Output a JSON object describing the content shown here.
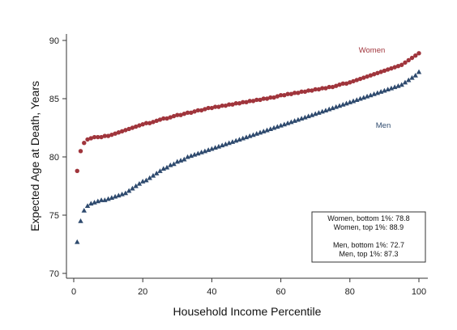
{
  "chart_data": {
    "type": "scatter",
    "xlabel": "Household Income Percentile",
    "ylabel": "Expected Age at Death, Years",
    "xlim": [
      0,
      100
    ],
    "ylim": [
      70,
      90
    ],
    "xticks": [
      0,
      20,
      40,
      60,
      80,
      100
    ],
    "yticks": [
      70,
      75,
      80,
      85,
      90
    ],
    "grid": false,
    "series": [
      {
        "name": "Women",
        "color": "#a0353c",
        "marker": "circle",
        "x": [
          1,
          2,
          3,
          4,
          5,
          6,
          7,
          8,
          9,
          10,
          11,
          12,
          13,
          14,
          15,
          16,
          17,
          18,
          19,
          20,
          21,
          22,
          23,
          24,
          25,
          26,
          27,
          28,
          29,
          30,
          31,
          32,
          33,
          34,
          35,
          36,
          37,
          38,
          39,
          40,
          41,
          42,
          43,
          44,
          45,
          46,
          47,
          48,
          49,
          50,
          51,
          52,
          53,
          54,
          55,
          56,
          57,
          58,
          59,
          60,
          61,
          62,
          63,
          64,
          65,
          66,
          67,
          68,
          69,
          70,
          71,
          72,
          73,
          74,
          75,
          76,
          77,
          78,
          79,
          80,
          81,
          82,
          83,
          84,
          85,
          86,
          87,
          88,
          89,
          90,
          91,
          92,
          93,
          94,
          95,
          96,
          97,
          98,
          99,
          100
        ],
        "values": [
          78.8,
          80.5,
          81.2,
          81.5,
          81.6,
          81.7,
          81.7,
          81.7,
          81.8,
          81.8,
          81.9,
          82.0,
          82.1,
          82.2,
          82.3,
          82.4,
          82.5,
          82.6,
          82.7,
          82.8,
          82.9,
          82.9,
          83.0,
          83.1,
          83.2,
          83.3,
          83.3,
          83.4,
          83.5,
          83.6,
          83.6,
          83.7,
          83.8,
          83.8,
          83.9,
          84.0,
          84.0,
          84.1,
          84.2,
          84.2,
          84.3,
          84.3,
          84.4,
          84.4,
          84.5,
          84.5,
          84.6,
          84.6,
          84.7,
          84.7,
          84.8,
          84.8,
          84.9,
          84.9,
          85.0,
          85.0,
          85.1,
          85.1,
          85.2,
          85.3,
          85.3,
          85.4,
          85.4,
          85.5,
          85.5,
          85.6,
          85.6,
          85.7,
          85.7,
          85.8,
          85.8,
          85.9,
          85.9,
          86.0,
          86.0,
          86.1,
          86.2,
          86.3,
          86.3,
          86.4,
          86.5,
          86.6,
          86.7,
          86.8,
          86.9,
          87.0,
          87.1,
          87.2,
          87.3,
          87.4,
          87.5,
          87.6,
          87.7,
          87.8,
          87.9,
          88.1,
          88.3,
          88.5,
          88.7,
          88.9
        ]
      },
      {
        "name": "Men",
        "color": "#2e4a6e",
        "marker": "triangle",
        "x": [
          1,
          2,
          3,
          4,
          5,
          6,
          7,
          8,
          9,
          10,
          11,
          12,
          13,
          14,
          15,
          16,
          17,
          18,
          19,
          20,
          21,
          22,
          23,
          24,
          25,
          26,
          27,
          28,
          29,
          30,
          31,
          32,
          33,
          34,
          35,
          36,
          37,
          38,
          39,
          40,
          41,
          42,
          43,
          44,
          45,
          46,
          47,
          48,
          49,
          50,
          51,
          52,
          53,
          54,
          55,
          56,
          57,
          58,
          59,
          60,
          61,
          62,
          63,
          64,
          65,
          66,
          67,
          68,
          69,
          70,
          71,
          72,
          73,
          74,
          75,
          76,
          77,
          78,
          79,
          80,
          81,
          82,
          83,
          84,
          85,
          86,
          87,
          88,
          89,
          90,
          91,
          92,
          93,
          94,
          95,
          96,
          97,
          98,
          99,
          100
        ],
        "values": [
          72.7,
          74.5,
          75.4,
          75.8,
          76.0,
          76.1,
          76.2,
          76.3,
          76.3,
          76.4,
          76.5,
          76.6,
          76.7,
          76.8,
          76.9,
          77.1,
          77.3,
          77.5,
          77.7,
          77.9,
          78.0,
          78.2,
          78.4,
          78.6,
          78.8,
          79.0,
          79.1,
          79.3,
          79.4,
          79.6,
          79.7,
          79.8,
          80.0,
          80.1,
          80.2,
          80.3,
          80.4,
          80.5,
          80.6,
          80.7,
          80.8,
          80.9,
          81.0,
          81.1,
          81.2,
          81.3,
          81.4,
          81.5,
          81.6,
          81.7,
          81.8,
          81.9,
          82.0,
          82.1,
          82.2,
          82.3,
          82.4,
          82.5,
          82.6,
          82.7,
          82.8,
          82.9,
          83.0,
          83.1,
          83.2,
          83.3,
          83.4,
          83.5,
          83.6,
          83.7,
          83.8,
          83.9,
          84.0,
          84.1,
          84.2,
          84.3,
          84.4,
          84.5,
          84.6,
          84.7,
          84.8,
          84.9,
          85.0,
          85.1,
          85.2,
          85.3,
          85.4,
          85.5,
          85.6,
          85.7,
          85.8,
          85.9,
          86.0,
          86.1,
          86.2,
          86.4,
          86.6,
          86.8,
          87.0,
          87.3
        ]
      }
    ],
    "series_labels": {
      "women": "Women",
      "men": "Men"
    },
    "annotation": {
      "women_bottom": "Women, bottom 1%: 78.8",
      "women_top": "Women, top 1%: 88.9",
      "men_bottom": "Men, bottom 1%: 72.7",
      "men_top": "Men, top 1%: 87.3"
    }
  }
}
